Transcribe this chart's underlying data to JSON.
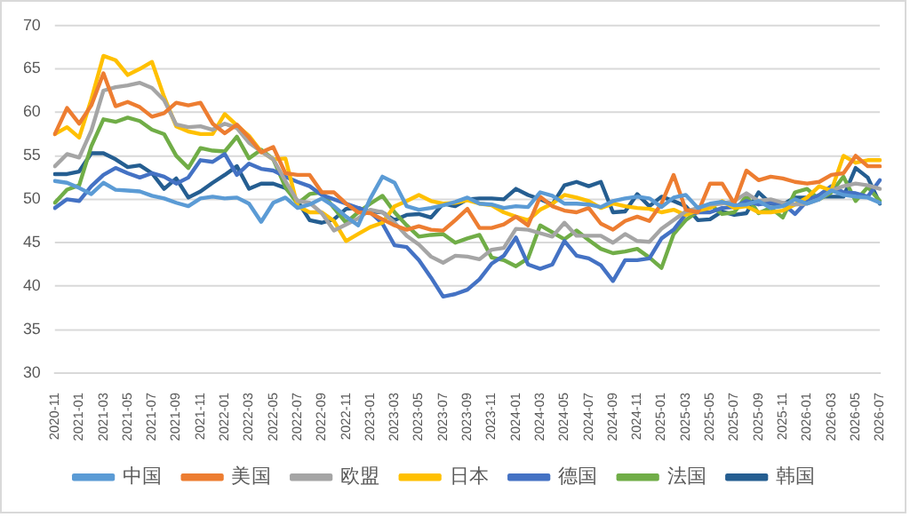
{
  "chart_data": {
    "type": "line",
    "categories": [
      "2020-11",
      null,
      "2021-01",
      null,
      "2021-03",
      null,
      "2021-05",
      null,
      "2021-07",
      null,
      "2021-09",
      null,
      "2021-11",
      null,
      "2022-01",
      null,
      "2022-03",
      null,
      "2022-05",
      null,
      "2022-07",
      null,
      "2022-09",
      null,
      "2022-11",
      null,
      "2023-01",
      null,
      "2023-03",
      null,
      "2023-05",
      null,
      "2023-07",
      null,
      "2023-09",
      null,
      "2023-11",
      null,
      "2024-01",
      null,
      "2024-03",
      null,
      "2024-05",
      null,
      "2024-07",
      null,
      "2024-09",
      null,
      "2024-11",
      null,
      "2025-01",
      null,
      "2025-03",
      null,
      "2025-05",
      null,
      "2025-07",
      null,
      "2025-09",
      null,
      "2025-11",
      null,
      "2026-01",
      null,
      "2026-03",
      null,
      "2026-05",
      null,
      "2026-07"
    ],
    "series": [
      {
        "name": "中国",
        "color": "#5b9bd5",
        "values": [
          52.1,
          51.9,
          51.3,
          50.6,
          51.9,
          51.1,
          51.0,
          50.9,
          50.4,
          50.1,
          49.6,
          49.2,
          50.1,
          50.3,
          50.1,
          50.2,
          49.5,
          47.4,
          49.6,
          50.2,
          49.0,
          49.4,
          50.1,
          49.2,
          48.0,
          47.0,
          50.1,
          52.6,
          51.9,
          49.2,
          48.8,
          49.0,
          49.3,
          49.7,
          50.2,
          49.5,
          49.4,
          49.0,
          49.2,
          49.1,
          50.8,
          50.4,
          49.5,
          49.5,
          49.4,
          49.1,
          49.8,
          50.1,
          50.3,
          50.1,
          49.1,
          50.2,
          50.5,
          49.0,
          49.5,
          49.7,
          49.3,
          49.4,
          49.8,
          49.0,
          49.2,
          50.0,
          49.5,
          50.0,
          51.0,
          50.5,
          50.3,
          50.2,
          49.6
        ]
      },
      {
        "name": "美国",
        "color": "#ed7d31",
        "values": [
          57.5,
          60.5,
          58.7,
          60.8,
          64.5,
          60.7,
          61.2,
          60.6,
          59.5,
          59.9,
          61.1,
          60.8,
          61.1,
          58.7,
          57.6,
          58.6,
          57.1,
          55.4,
          56.0,
          53.0,
          52.8,
          52.8,
          50.8,
          50.8,
          49.5,
          48.5,
          48.4,
          47.7,
          47.0,
          46.5,
          46.9,
          46.5,
          46.4,
          47.6,
          48.9,
          46.7,
          46.7,
          47.1,
          48.0,
          47.0,
          50.3,
          49.2,
          48.7,
          48.5,
          49.0,
          47.2,
          46.5,
          47.5,
          48.0,
          47.5,
          49.5,
          52.8,
          48.8,
          48.5,
          51.8,
          51.8,
          49.5,
          53.3,
          52.2,
          52.6,
          52.4,
          52.0,
          51.8,
          52.0,
          52.8,
          53.0,
          55.0,
          53.8,
          53.8
        ]
      },
      {
        "name": "欧盟",
        "color": "#a5a5a5",
        "values": [
          53.8,
          55.2,
          54.8,
          57.9,
          62.5,
          62.9,
          63.1,
          63.4,
          62.8,
          61.4,
          58.6,
          58.3,
          58.4,
          58.0,
          58.7,
          58.2,
          56.5,
          55.5,
          54.6,
          52.1,
          49.8,
          49.6,
          48.4,
          46.4,
          47.1,
          47.8,
          48.8,
          48.5,
          47.3,
          45.8,
          44.8,
          43.4,
          42.7,
          43.5,
          43.4,
          43.1,
          44.2,
          44.4,
          46.6,
          46.5,
          46.1,
          45.7,
          47.3,
          45.8,
          45.8,
          45.8,
          45.0,
          46.0,
          45.2,
          45.1,
          46.6,
          47.6,
          48.6,
          49.0,
          49.4,
          49.5,
          49.8,
          50.7,
          49.8,
          50.0,
          49.6,
          49.4,
          49.5,
          50.0,
          51.0,
          51.5,
          51.8,
          51.6,
          51.2
        ]
      },
      {
        "name": "日本",
        "color": "#ffc000",
        "values": [
          57.5,
          58.3,
          57.1,
          61.5,
          66.5,
          66.0,
          64.3,
          65.0,
          65.8,
          61.8,
          58.4,
          57.8,
          57.5,
          57.5,
          59.8,
          58.5,
          57.3,
          55.5,
          54.6,
          54.7,
          49.2,
          48.5,
          48.5,
          47.5,
          45.2,
          46.0,
          46.8,
          47.3,
          49.2,
          49.8,
          50.5,
          49.8,
          49.5,
          49.6,
          49.9,
          49.5,
          49.3,
          48.5,
          48.0,
          47.6,
          48.8,
          49.5,
          50.5,
          50.2,
          49.8,
          49.0,
          49.5,
          49.2,
          49.0,
          48.9,
          48.5,
          48.8,
          48.2,
          48.7,
          49.0,
          49.8,
          49.0,
          49.2,
          48.5,
          48.5,
          48.7,
          49.4,
          50.2,
          51.5,
          51.0,
          55.0,
          54.2,
          54.5,
          54.5
        ]
      },
      {
        "name": "德国",
        "color": "#4472c4",
        "values": [
          49.0,
          50.0,
          49.8,
          51.5,
          52.8,
          53.6,
          53.0,
          52.5,
          53.0,
          52.6,
          51.8,
          52.5,
          54.5,
          54.3,
          55.2,
          52.8,
          54.1,
          53.5,
          53.3,
          52.6,
          52.0,
          51.5,
          50.5,
          50.0,
          49.5,
          49.0,
          48.5,
          47.2,
          44.7,
          44.5,
          43.0,
          41.0,
          38.8,
          39.1,
          39.6,
          40.8,
          42.6,
          43.5,
          45.6,
          42.5,
          42.0,
          42.5,
          45.2,
          43.5,
          43.2,
          42.4,
          40.6,
          43.0,
          43.0,
          43.2,
          45.5,
          46.5,
          48.3,
          48.5,
          48.5,
          49.0,
          49.1,
          49.8,
          49.4,
          49.6,
          49.5,
          48.3,
          49.8,
          50.5,
          51.5,
          50.8,
          50.7,
          50.3,
          52.2
        ]
      },
      {
        "name": "法国",
        "color": "#70ad47",
        "values": [
          49.6,
          51.1,
          51.6,
          56.1,
          59.2,
          58.9,
          59.4,
          59.0,
          58.0,
          57.5,
          55.0,
          53.6,
          55.9,
          55.6,
          55.5,
          57.2,
          54.7,
          55.7,
          54.6,
          51.4,
          49.5,
          50.6,
          50.8,
          49.0,
          47.3,
          48.5,
          49.5,
          50.4,
          48.5,
          47.0,
          45.7,
          45.9,
          46.0,
          45.0,
          45.5,
          45.9,
          43.3,
          43.0,
          42.3,
          43.2,
          47.0,
          46.2,
          45.4,
          46.4,
          45.3,
          44.3,
          43.8,
          44.0,
          44.3,
          43.3,
          42.1,
          46.0,
          47.6,
          48.6,
          49.4,
          48.3,
          48.5,
          50.4,
          48.4,
          49.0,
          47.9,
          50.8,
          51.2,
          50.0,
          50.8,
          52.6,
          49.8,
          51.4,
          49.8
        ]
      },
      {
        "name": "韩国",
        "color": "#255e91",
        "values": [
          52.9,
          52.9,
          53.2,
          55.3,
          55.3,
          54.6,
          53.7,
          53.9,
          53.0,
          51.2,
          52.4,
          50.2,
          50.9,
          51.9,
          52.8,
          53.8,
          51.2,
          51.8,
          51.8,
          51.3,
          49.8,
          47.6,
          47.3,
          47.7,
          48.9,
          49.0,
          48.6,
          48.5,
          47.6,
          48.2,
          48.3,
          47.9,
          49.5,
          49.2,
          50.0,
          50.1,
          50.1,
          50.0,
          51.2,
          50.5,
          50.0,
          49.4,
          51.6,
          52.0,
          51.5,
          52.0,
          48.5,
          48.6,
          50.6,
          49.2,
          50.3,
          49.8,
          49.2,
          47.6,
          47.7,
          48.6,
          48.2,
          48.4,
          50.8,
          49.5,
          49.4,
          50.2,
          50.2,
          50.3,
          50.3,
          50.3,
          53.6,
          52.5,
          49.5
        ]
      }
    ],
    "ylim": [
      30,
      70
    ],
    "yticks": [
      30,
      35,
      40,
      45,
      50,
      55,
      60,
      65,
      70
    ],
    "grid": "y",
    "legend": "bottom",
    "marker": "none",
    "line_style": "solid"
  }
}
